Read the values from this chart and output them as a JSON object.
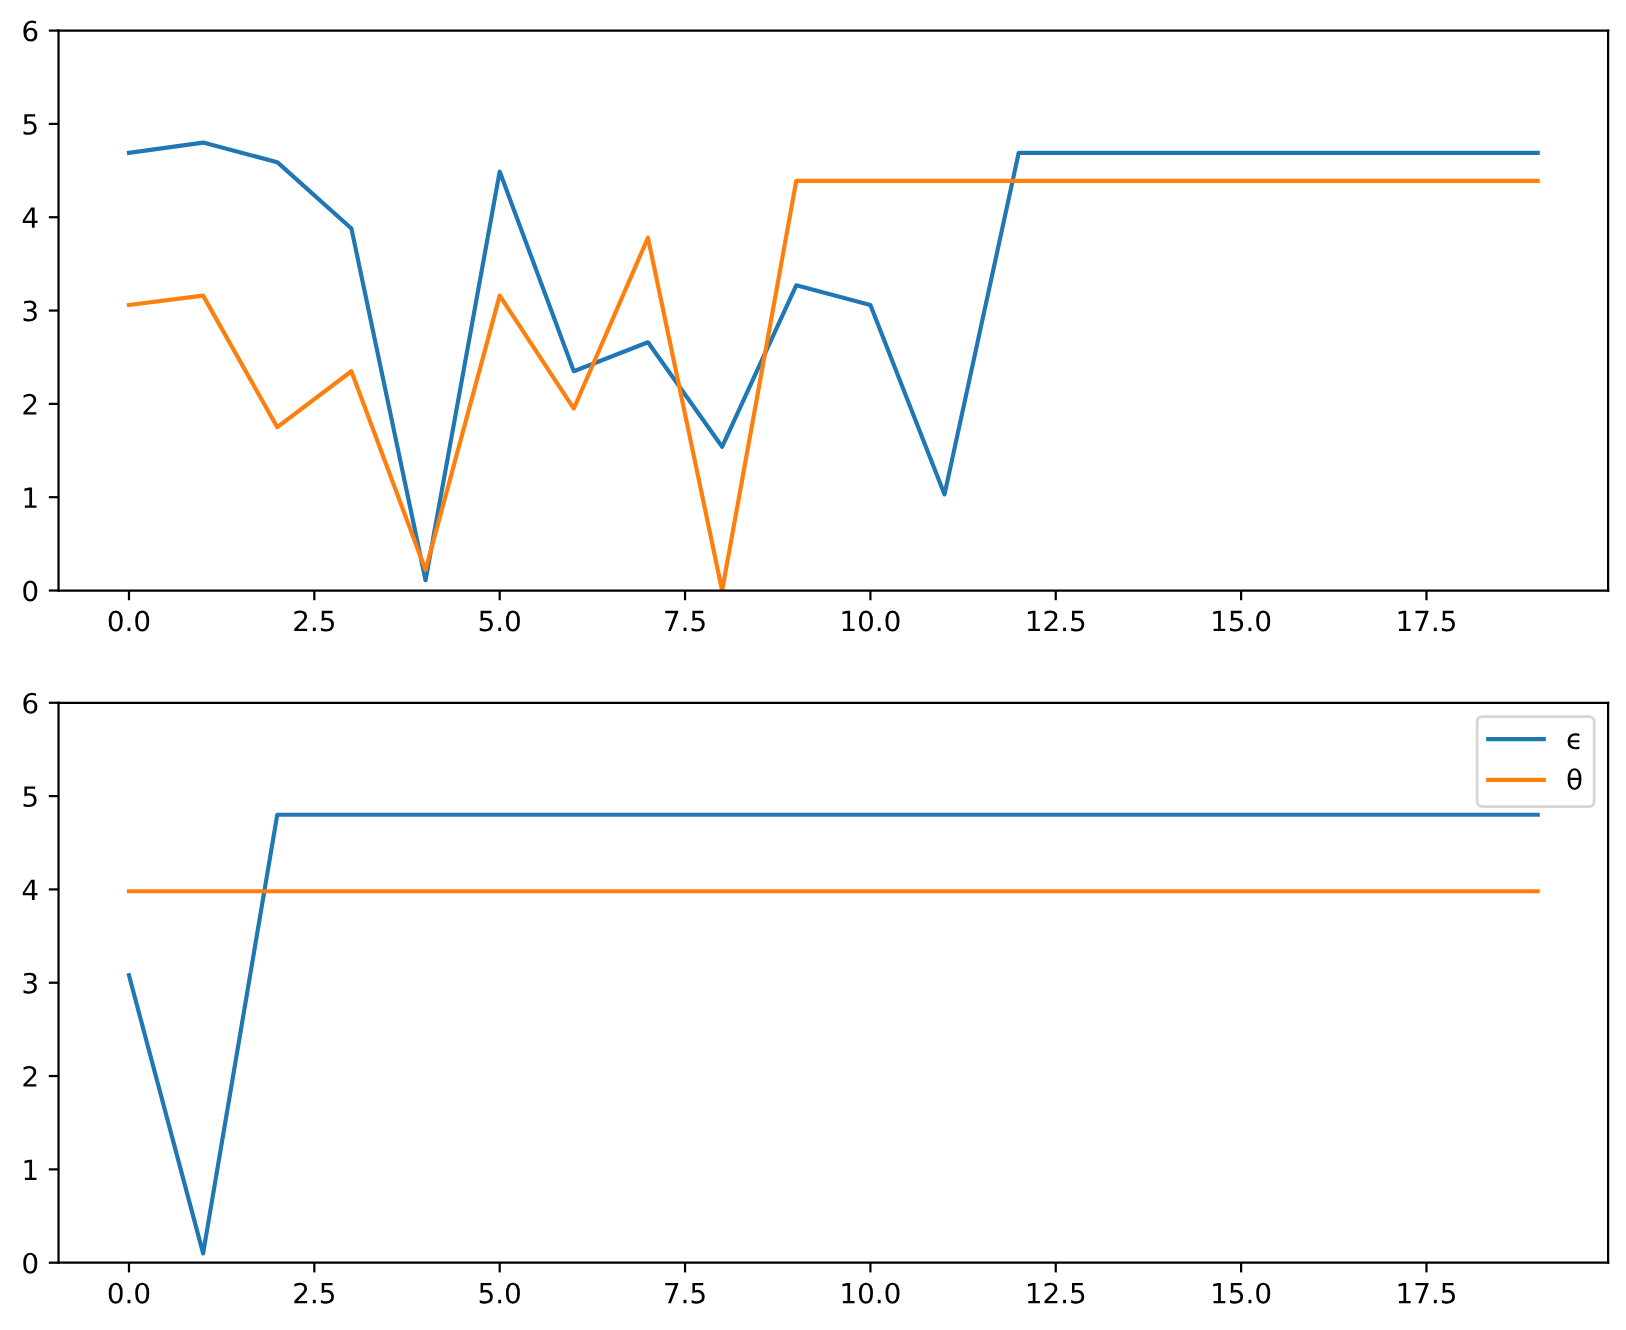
{
  "chart_data": [
    {
      "type": "line",
      "x": [
        0,
        1,
        2,
        3,
        4,
        5,
        6,
        7,
        8,
        9,
        10,
        11,
        12,
        13,
        14,
        15,
        16,
        17,
        18,
        19
      ],
      "series": [
        {
          "color": "#1f77b4",
          "values": [
            4.69,
            4.8,
            4.59,
            3.88,
            0.11,
            4.49,
            2.35,
            2.66,
            1.54,
            3.27,
            3.06,
            1.03,
            4.69,
            4.69,
            4.69,
            4.69,
            4.69,
            4.69,
            4.69,
            4.69
          ]
        },
        {
          "color": "#ff7f0e",
          "values": [
            3.06,
            3.16,
            1.75,
            2.35,
            0.22,
            3.16,
            1.95,
            3.78,
            0,
            4.39,
            4.39,
            4.39,
            4.39,
            4.39,
            4.39,
            4.39,
            4.39,
            4.39,
            4.39,
            4.39
          ]
        }
      ],
      "xlim": [
        -0.95,
        19.95
      ],
      "xticks": [
        {
          "value": 0,
          "label": "0.0"
        },
        {
          "value": 2.5,
          "label": "2.5"
        },
        {
          "value": 5,
          "label": "5.0"
        },
        {
          "value": 7.5,
          "label": "7.5"
        },
        {
          "value": 10,
          "label": "10.0"
        },
        {
          "value": 12.5,
          "label": "12.5"
        },
        {
          "value": 15,
          "label": "15.0"
        },
        {
          "value": 17.5,
          "label": "17.5"
        }
      ],
      "ylim": [
        0,
        6
      ],
      "yticks": [
        0,
        1,
        2,
        3,
        4,
        5,
        6
      ],
      "grid": false,
      "legend": false
    },
    {
      "type": "line",
      "x": [
        0,
        1,
        2,
        3,
        4,
        5,
        6,
        7,
        8,
        9,
        10,
        11,
        12,
        13,
        14,
        15,
        16,
        17,
        18,
        19
      ],
      "series": [
        {
          "name": "ϵ",
          "color": "#1f77b4",
          "values": [
            3.08,
            0.1,
            4.8,
            4.8,
            4.8,
            4.8,
            4.8,
            4.8,
            4.8,
            4.8,
            4.8,
            4.8,
            4.8,
            4.8,
            4.8,
            4.8,
            4.8,
            4.8,
            4.8,
            4.8
          ]
        },
        {
          "name": "θ",
          "color": "#ff7f0e",
          "values": [
            3.98,
            3.98,
            3.98,
            3.98,
            3.98,
            3.98,
            3.98,
            3.98,
            3.98,
            3.98,
            3.98,
            3.98,
            3.98,
            3.98,
            3.98,
            3.98,
            3.98,
            3.98,
            3.98,
            3.98
          ]
        }
      ],
      "xlim": [
        -0.95,
        19.95
      ],
      "xticks": [
        {
          "value": 0,
          "label": "0.0"
        },
        {
          "value": 2.5,
          "label": "2.5"
        },
        {
          "value": 5,
          "label": "5.0"
        },
        {
          "value": 7.5,
          "label": "7.5"
        },
        {
          "value": 10,
          "label": "10.0"
        },
        {
          "value": 12.5,
          "label": "12.5"
        },
        {
          "value": 15,
          "label": "15.0"
        },
        {
          "value": 17.5,
          "label": "17.5"
        }
      ],
      "ylim": [
        0,
        6
      ],
      "yticks": [
        0,
        1,
        2,
        3,
        4,
        5,
        6
      ],
      "grid": false,
      "legend": "top right"
    }
  ]
}
